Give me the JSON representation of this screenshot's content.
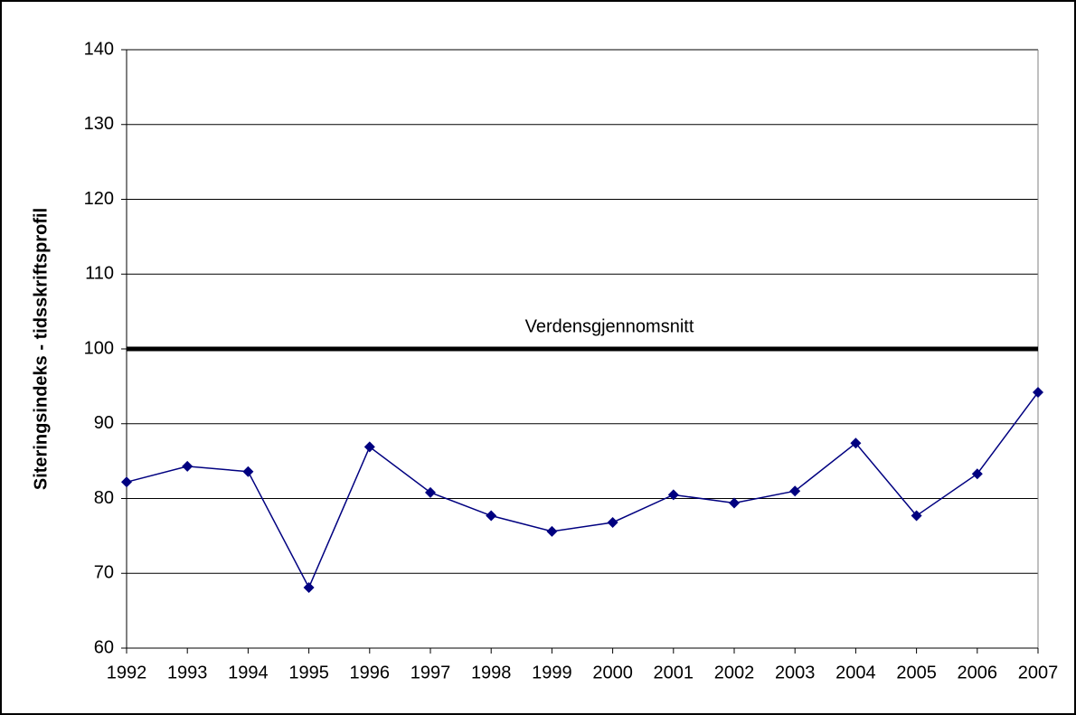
{
  "chart_data": {
    "type": "line",
    "y_label": "Siteringsindeks - tidsskriftsprofil",
    "categories": [
      "1992",
      "1993",
      "1994",
      "1995",
      "1996",
      "1997",
      "1998",
      "1999",
      "2000",
      "2001",
      "2002",
      "2003",
      "2004",
      "2005",
      "2006",
      "2007"
    ],
    "series": [
      {
        "color": "#000080",
        "values": [
          82.2,
          84.3,
          83.6,
          68.1,
          86.9,
          80.8,
          77.7,
          75.6,
          76.8,
          80.5,
          79.4,
          81.0,
          87.4,
          77.7,
          83.3,
          94.2
        ]
      }
    ],
    "reference_line": {
      "value": 100,
      "label": "Verdensgjennomsnitt",
      "color": "#000000"
    },
    "ylim": [
      60,
      140
    ],
    "yticks": [
      60,
      70,
      80,
      90,
      100,
      110,
      120,
      130,
      140
    ],
    "grid": true
  }
}
